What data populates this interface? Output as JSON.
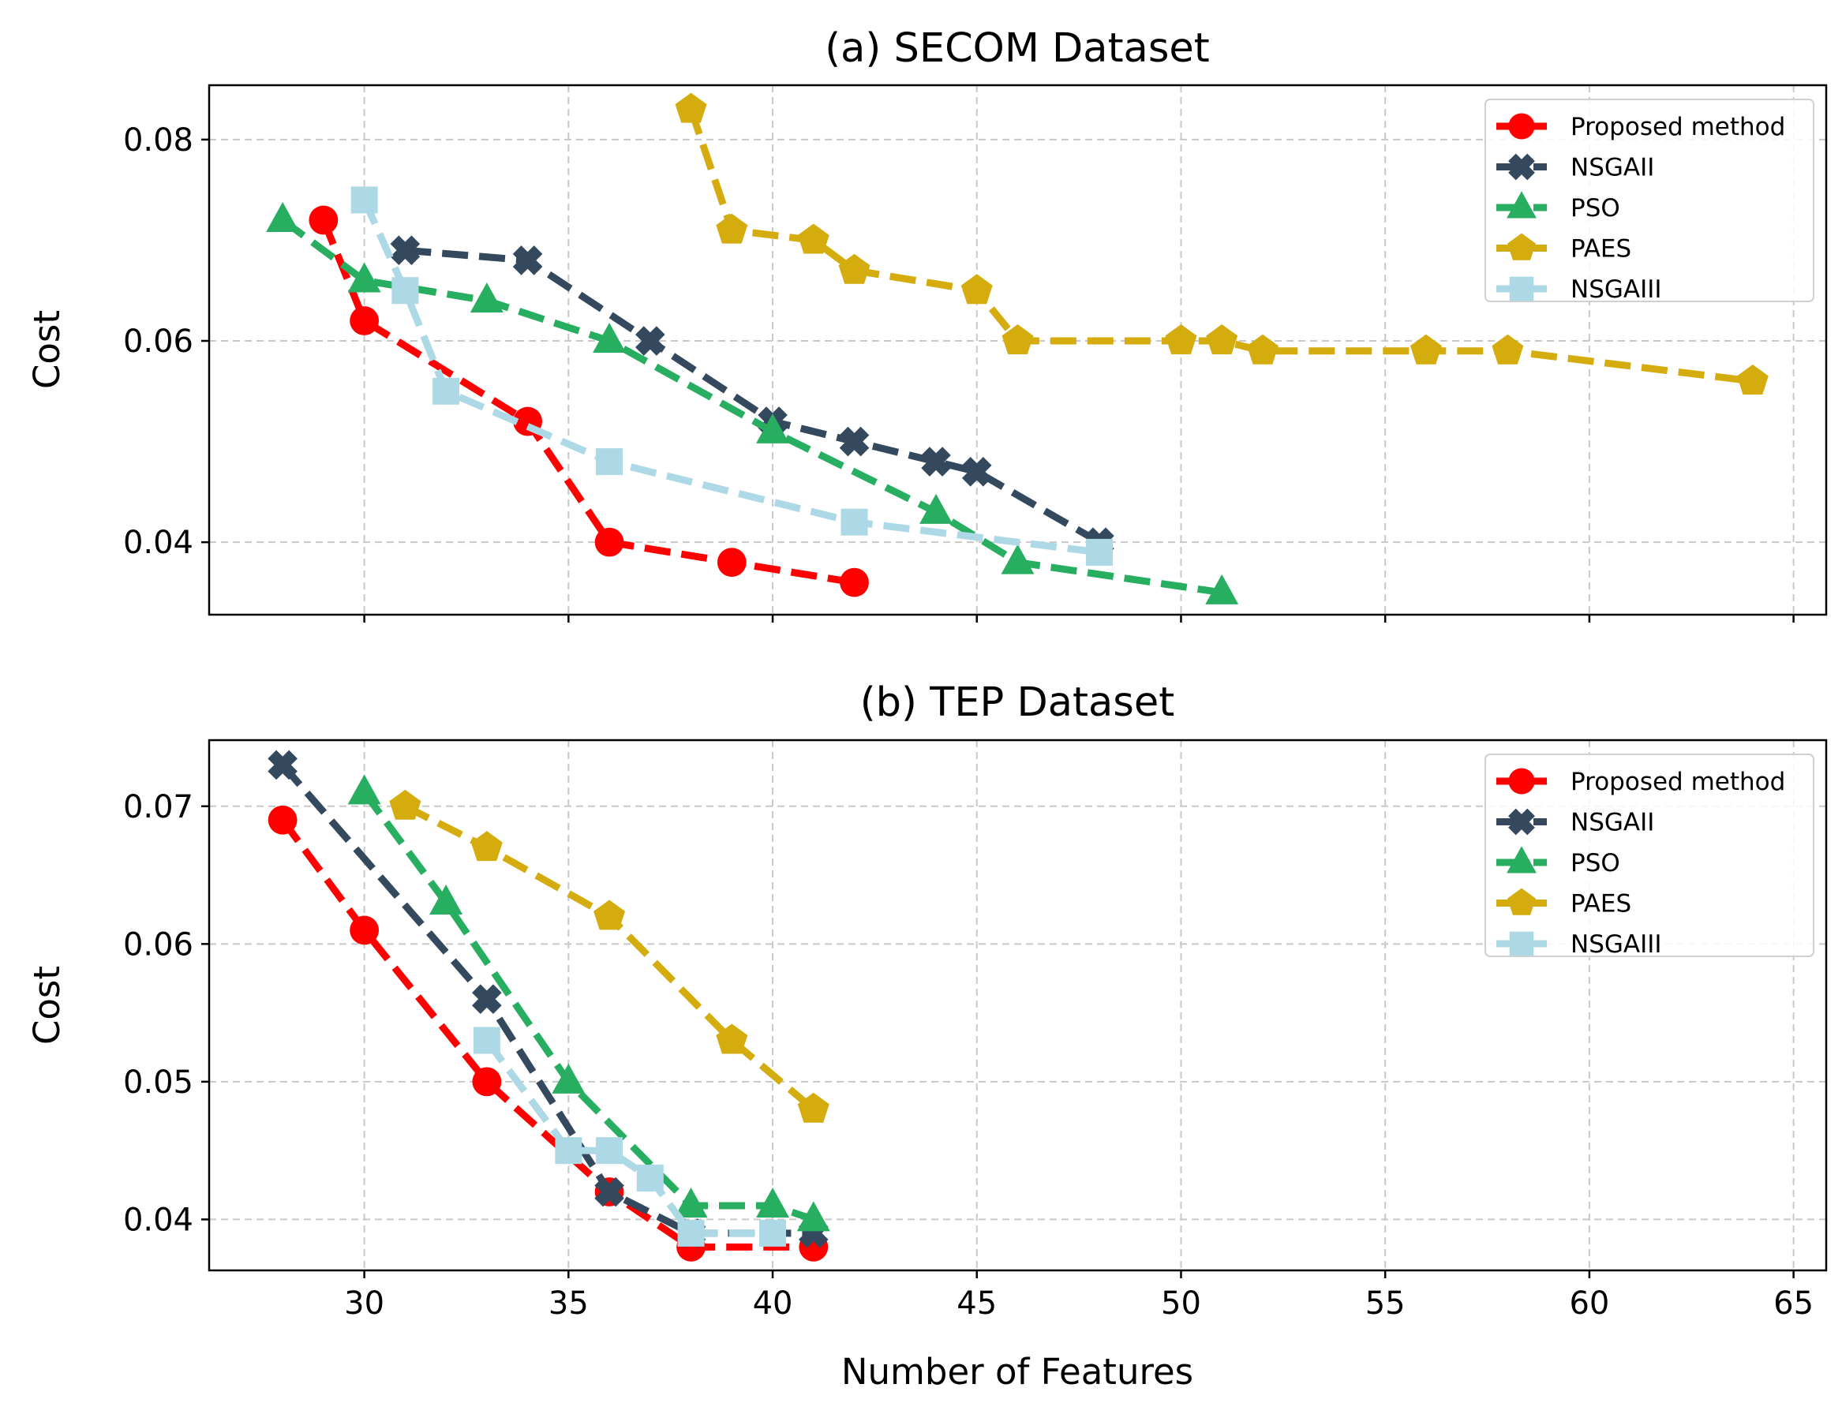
{
  "chart_data": [
    {
      "type": "line",
      "title": "(a) SECOM Dataset",
      "xlabel": "",
      "ylabel": "Cost",
      "xlim": [
        26.2,
        65.8
      ],
      "ylim": [
        0.0328,
        0.0854
      ],
      "xticks": [
        30,
        35,
        40,
        45,
        50,
        55,
        60,
        65
      ],
      "yticks": [
        0.04,
        0.06,
        0.08
      ],
      "xtick_labels_shown": false,
      "grid": true,
      "legend": "top-right",
      "series": [
        {
          "name": "Proposed method",
          "color": "#ff0000",
          "marker": "circle",
          "x": [
            29,
            30,
            34,
            36,
            39,
            42
          ],
          "y": [
            0.072,
            0.062,
            0.052,
            0.04,
            0.038,
            0.036
          ]
        },
        {
          "name": "NSGAII",
          "color": "#34495e",
          "marker": "x",
          "x": [
            31,
            34,
            37,
            40,
            42,
            44,
            45,
            48
          ],
          "y": [
            0.069,
            0.068,
            0.06,
            0.052,
            0.05,
            0.048,
            0.047,
            0.04
          ]
        },
        {
          "name": "PSO",
          "color": "#27ae60",
          "marker": "triangle",
          "x": [
            28,
            30,
            33,
            36,
            40,
            44,
            46,
            51
          ],
          "y": [
            0.072,
            0.066,
            0.064,
            0.06,
            0.051,
            0.043,
            0.038,
            0.035
          ]
        },
        {
          "name": "PAES",
          "color": "#d4ac0d",
          "marker": "pentagon",
          "x": [
            38,
            39,
            41,
            42,
            45,
            46,
            50,
            51,
            52,
            56,
            58,
            64
          ],
          "y": [
            0.083,
            0.071,
            0.07,
            0.067,
            0.065,
            0.06,
            0.06,
            0.06,
            0.059,
            0.059,
            0.059,
            0.056
          ]
        },
        {
          "name": "NSGAIII",
          "color": "#add8e6",
          "marker": "square",
          "x": [
            30,
            31,
            32,
            36,
            42,
            48
          ],
          "y": [
            0.074,
            0.065,
            0.055,
            0.048,
            0.042,
            0.039
          ]
        }
      ]
    },
    {
      "type": "line",
      "title": "(b) TEP Dataset",
      "xlabel": "Number of Features",
      "ylabel": "Cost",
      "xlim": [
        26.2,
        65.8
      ],
      "ylim": [
        0.0363,
        0.0748
      ],
      "xticks": [
        30,
        35,
        40,
        45,
        50,
        55,
        60,
        65
      ],
      "yticks": [
        0.04,
        0.05,
        0.06,
        0.07
      ],
      "xtick_labels_shown": true,
      "grid": true,
      "legend": "top-right",
      "series": [
        {
          "name": "Proposed method",
          "color": "#ff0000",
          "marker": "circle",
          "x": [
            28,
            30,
            33,
            36,
            38,
            41
          ],
          "y": [
            0.069,
            0.061,
            0.05,
            0.042,
            0.038,
            0.038
          ]
        },
        {
          "name": "NSGAII",
          "color": "#34495e",
          "marker": "x",
          "x": [
            28,
            33,
            36,
            38,
            41
          ],
          "y": [
            0.073,
            0.056,
            0.042,
            0.039,
            0.039
          ]
        },
        {
          "name": "PSO",
          "color": "#27ae60",
          "marker": "triangle",
          "x": [
            30,
            32,
            35,
            38,
            40,
            41
          ],
          "y": [
            0.071,
            0.063,
            0.05,
            0.041,
            0.041,
            0.04
          ]
        },
        {
          "name": "PAES",
          "color": "#d4ac0d",
          "marker": "pentagon",
          "x": [
            31,
            33,
            36,
            39,
            41
          ],
          "y": [
            0.07,
            0.067,
            0.062,
            0.053,
            0.048
          ]
        },
        {
          "name": "NSGAIII",
          "color": "#add8e6",
          "marker": "square",
          "x": [
            33,
            35,
            36,
            37,
            38,
            40
          ],
          "y": [
            0.053,
            0.045,
            0.045,
            0.043,
            0.039,
            0.039
          ]
        }
      ]
    }
  ]
}
